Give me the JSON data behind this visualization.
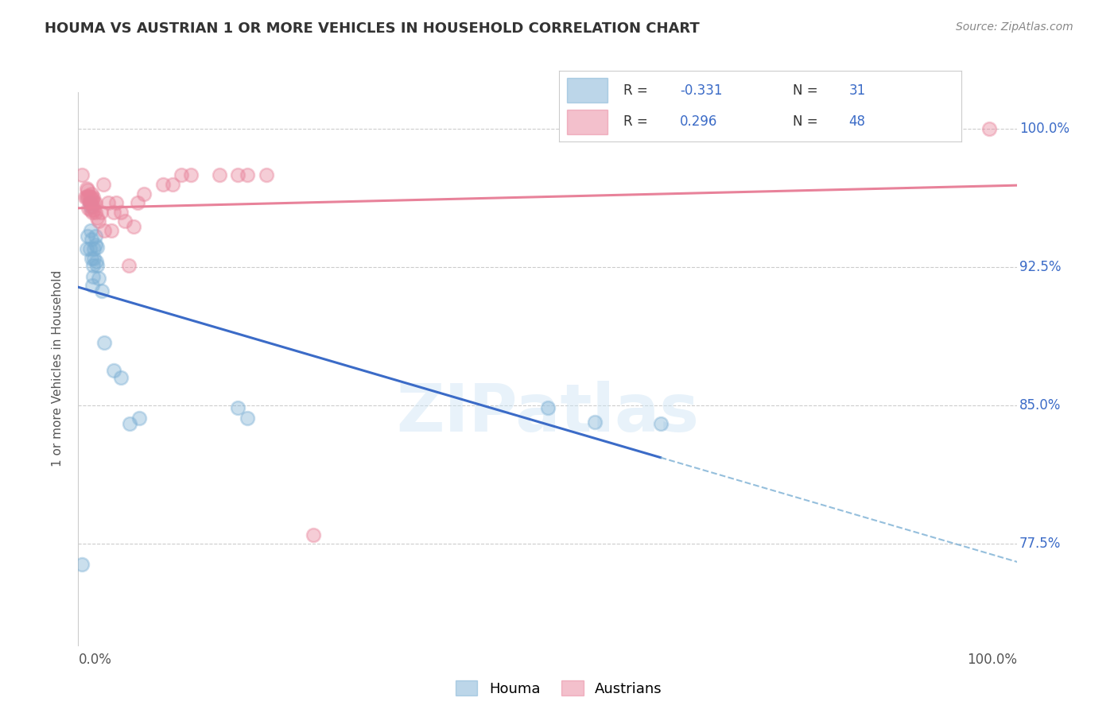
{
  "title": "HOUMA VS AUSTRIAN 1 OR MORE VEHICLES IN HOUSEHOLD CORRELATION CHART",
  "source": "Source: ZipAtlas.com",
  "ylabel": "1 or more Vehicles in Household",
  "xlim": [
    0.0,
    1.0
  ],
  "ylim": [
    0.72,
    1.02
  ],
  "yticks": [
    0.775,
    0.85,
    0.925,
    1.0
  ],
  "ytick_labels": [
    "77.5%",
    "85.0%",
    "92.5%",
    "100.0%"
  ],
  "houma_color": "#7bafd4",
  "houma_line_color": "#3b6bc7",
  "austrians_color": "#e8829a",
  "houma_R": -0.331,
  "houma_N": 31,
  "austrians_R": 0.296,
  "austrians_N": 48,
  "watermark": "ZIPatlas",
  "houma_x": [
    0.004,
    0.009,
    0.01,
    0.012,
    0.012,
    0.013,
    0.013,
    0.014,
    0.014,
    0.015,
    0.016,
    0.016,
    0.017,
    0.017,
    0.018,
    0.018,
    0.019,
    0.02,
    0.02,
    0.022,
    0.025,
    0.028,
    0.038,
    0.045,
    0.055,
    0.065,
    0.17,
    0.18,
    0.5,
    0.55,
    0.62
  ],
  "houma_y": [
    0.764,
    0.935,
    0.942,
    0.96,
    0.935,
    0.945,
    0.958,
    0.93,
    0.94,
    0.915,
    0.926,
    0.92,
    0.93,
    0.935,
    0.937,
    0.942,
    0.928,
    0.926,
    0.936,
    0.919,
    0.912,
    0.884,
    0.869,
    0.865,
    0.84,
    0.843,
    0.849,
    0.843,
    0.849,
    0.841,
    0.84
  ],
  "austrians_x": [
    0.004,
    0.007,
    0.009,
    0.009,
    0.01,
    0.01,
    0.011,
    0.011,
    0.012,
    0.012,
    0.013,
    0.013,
    0.013,
    0.014,
    0.014,
    0.015,
    0.015,
    0.016,
    0.016,
    0.017,
    0.017,
    0.018,
    0.018,
    0.02,
    0.022,
    0.024,
    0.027,
    0.028,
    0.032,
    0.035,
    0.038,
    0.04,
    0.045,
    0.05,
    0.054,
    0.059,
    0.063,
    0.07,
    0.09,
    0.1,
    0.11,
    0.12,
    0.15,
    0.17,
    0.18,
    0.2,
    0.25,
    0.97
  ],
  "austrians_y": [
    0.975,
    0.963,
    0.968,
    0.963,
    0.963,
    0.967,
    0.957,
    0.964,
    0.96,
    0.963,
    0.956,
    0.96,
    0.963,
    0.96,
    0.965,
    0.955,
    0.962,
    0.958,
    0.963,
    0.956,
    0.96,
    0.955,
    0.96,
    0.952,
    0.95,
    0.955,
    0.97,
    0.945,
    0.96,
    0.945,
    0.955,
    0.96,
    0.955,
    0.95,
    0.926,
    0.947,
    0.96,
    0.965,
    0.97,
    0.97,
    0.975,
    0.975,
    0.975,
    0.975,
    0.975,
    0.975,
    0.78,
    1.0
  ],
  "background_color": "#ffffff",
  "grid_color": "#cccccc"
}
